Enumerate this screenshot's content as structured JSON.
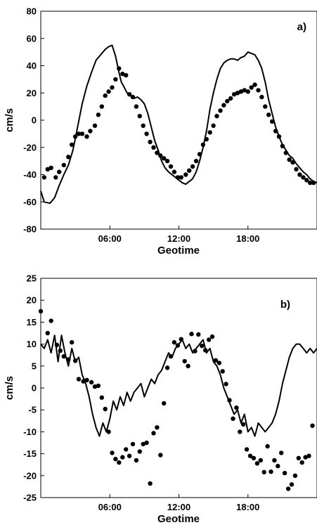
{
  "colors": {
    "line": "#000000",
    "points": "#000000",
    "background": "#ffffff"
  },
  "chart_data": [
    {
      "type": "line",
      "panel_label": "a)",
      "xlabel": "Geotime",
      "ylabel": "cm/s",
      "xlim": [
        0,
        24
      ],
      "ylim": [
        -80,
        80
      ],
      "xticks": [
        6,
        12,
        18
      ],
      "xtick_labels": [
        "06:00",
        "12:00",
        "18:00"
      ],
      "yticks": [
        -80,
        -60,
        -40,
        -20,
        0,
        20,
        40,
        60,
        80
      ],
      "ytick_labels": [
        "-80",
        "-60",
        "-40",
        "-20",
        "0",
        "20",
        "40",
        "60",
        "80"
      ],
      "grid": false,
      "series": [
        {
          "style": "line",
          "x": [
            0,
            0.3,
            0.8,
            1.2,
            1.6,
            2.0,
            2.4,
            2.8,
            3.2,
            3.6,
            4.0,
            4.4,
            4.8,
            5.2,
            5.6,
            5.9,
            6.2,
            6.5,
            6.8,
            7.0,
            7.2,
            7.5,
            7.8,
            8.1,
            8.4,
            8.7,
            9.0,
            9.3,
            9.6,
            9.9,
            10.2,
            10.5,
            10.8,
            11.1,
            11.4,
            11.7,
            12.0,
            12.3,
            12.6,
            12.9,
            13.2,
            13.5,
            13.8,
            14.1,
            14.4,
            14.7,
            15.0,
            15.3,
            15.6,
            15.9,
            16.2,
            16.5,
            16.8,
            17.1,
            17.4,
            17.7,
            18.0,
            18.3,
            18.6,
            18.9,
            19.2,
            19.5,
            19.8,
            20.1,
            20.4,
            20.7,
            21.0,
            21.3,
            21.6,
            21.9,
            22.2,
            22.5,
            22.8,
            23.1,
            23.4,
            23.7,
            24.0
          ],
          "y": [
            -52,
            -60,
            -61,
            -57,
            -48,
            -40,
            -33,
            -22,
            -5,
            12,
            25,
            35,
            44,
            48,
            52,
            54,
            55,
            47,
            35,
            28,
            25,
            20,
            18,
            16,
            17,
            15,
            12,
            5,
            -5,
            -15,
            -22,
            -30,
            -35,
            -38,
            -40,
            -42,
            -44,
            -46,
            -47,
            -45,
            -43,
            -38,
            -30,
            -20,
            -8,
            8,
            20,
            30,
            38,
            42,
            44,
            45,
            45,
            44,
            46,
            47,
            50,
            49,
            48,
            44,
            38,
            28,
            15,
            5,
            -5,
            -12,
            -18,
            -22,
            -26,
            -28,
            -32,
            -35,
            -38,
            -40,
            -43,
            -45,
            -46
          ]
        },
        {
          "style": "scatter",
          "x": [
            0.3,
            0.6,
            0.9,
            1.3,
            1.6,
            2.0,
            2.4,
            2.7,
            3.0,
            3.3,
            3.6,
            4.0,
            4.3,
            4.7,
            5.0,
            5.3,
            5.6,
            5.9,
            6.2,
            6.5,
            6.8,
            7.1,
            7.4,
            7.7,
            8.0,
            8.3,
            8.6,
            8.9,
            9.2,
            9.5,
            9.8,
            10.1,
            10.4,
            10.7,
            11.0,
            11.3,
            11.6,
            11.9,
            12.2,
            12.6,
            12.9,
            13.2,
            13.5,
            13.8,
            14.1,
            14.4,
            14.7,
            15.0,
            15.3,
            15.6,
            15.9,
            16.2,
            16.5,
            16.8,
            17.1,
            17.4,
            17.7,
            18.0,
            18.3,
            18.6,
            18.9,
            19.2,
            19.5,
            19.8,
            20.1,
            20.4,
            20.7,
            21.0,
            21.3,
            21.6,
            21.9,
            22.2,
            22.5,
            22.8,
            23.1,
            23.4,
            23.7
          ],
          "y": [
            -42,
            -36,
            -35,
            -42,
            -38,
            -33,
            -27,
            -18,
            -12,
            -10,
            -10,
            -12,
            -8,
            -4,
            4,
            10,
            18,
            21,
            24,
            30,
            38,
            34,
            33,
            19,
            17,
            10,
            3,
            -4,
            -10,
            -16,
            -20,
            -24,
            -26,
            -28,
            -30,
            -34,
            -38,
            -42,
            -42,
            -40,
            -37,
            -34,
            -30,
            -25,
            -18,
            -14,
            -9,
            -4,
            3,
            7,
            11,
            14,
            16,
            19,
            20,
            21,
            22,
            21,
            24,
            26,
            22,
            17,
            10,
            4,
            -1,
            -8,
            -12,
            -19,
            -24,
            -29,
            -31,
            -36,
            -40,
            -42,
            -44,
            -46,
            -46
          ]
        }
      ]
    },
    {
      "type": "line",
      "panel_label": "b)",
      "xlabel": "Geotime",
      "ylabel": "cm/s",
      "xlim": [
        0,
        24
      ],
      "ylim": [
        -25,
        25
      ],
      "xticks": [
        6,
        12,
        18
      ],
      "xtick_labels": [
        "06:00",
        "12:00",
        "18:00"
      ],
      "yticks": [
        -25,
        -20,
        -15,
        -10,
        -5,
        0,
        5,
        10,
        15,
        20,
        25
      ],
      "ytick_labels": [
        "-25",
        "-20",
        "-15",
        "-10",
        "-5",
        "0",
        "5",
        "10",
        "15",
        "20",
        "25"
      ],
      "grid": false,
      "series": [
        {
          "style": "line",
          "x": [
            0,
            0.3,
            0.6,
            0.9,
            1.2,
            1.5,
            1.8,
            2.1,
            2.4,
            2.7,
            3.0,
            3.3,
            3.6,
            3.9,
            4.2,
            4.5,
            4.8,
            5.1,
            5.4,
            5.7,
            6.0,
            6.3,
            6.6,
            6.9,
            7.2,
            7.5,
            7.8,
            8.1,
            8.4,
            8.7,
            9.0,
            9.3,
            9.6,
            9.9,
            10.2,
            10.5,
            10.8,
            11.1,
            11.4,
            11.7,
            12.0,
            12.3,
            12.6,
            12.9,
            13.2,
            13.5,
            13.8,
            14.1,
            14.4,
            14.7,
            15.0,
            15.3,
            15.6,
            15.9,
            16.2,
            16.5,
            16.8,
            17.1,
            17.4,
            17.7,
            18.0,
            18.3,
            18.6,
            18.9,
            19.2,
            19.5,
            19.8,
            20.1,
            20.4,
            20.7,
            21.0,
            21.3,
            21.6,
            21.9,
            22.2,
            22.5,
            22.8,
            23.1,
            23.4,
            23.7,
            24.0
          ],
          "y": [
            10,
            9,
            11,
            8,
            12,
            6,
            12,
            8,
            5,
            9,
            6,
            7,
            3,
            1,
            -2,
            -6,
            -9,
            -11,
            -8,
            -10,
            -7,
            -3,
            -5,
            -2,
            -4,
            -1,
            -3,
            -1,
            0,
            1,
            -2,
            0,
            2,
            1,
            3,
            4,
            6,
            8,
            7,
            9,
            10,
            11,
            9,
            10,
            8,
            9,
            10,
            11,
            8,
            9,
            6,
            5,
            3,
            0,
            -2,
            -4,
            -6,
            -5,
            -8,
            -6,
            -10,
            -9,
            -11,
            -8,
            -9,
            -10,
            -9,
            -8,
            -6,
            -3,
            1,
            4,
            7,
            9,
            10,
            10,
            9,
            8,
            9,
            8,
            9
          ]
        },
        {
          "style": "scatter",
          "x": [
            0,
            0.6,
            0.9,
            1.4,
            1.7,
            2.0,
            2.4,
            2.7,
            3.0,
            3.3,
            3.7,
            4.0,
            4.4,
            4.7,
            5.0,
            5.3,
            5.6,
            5.9,
            6.2,
            6.5,
            6.8,
            7.1,
            7.4,
            7.7,
            8.0,
            8.3,
            8.6,
            8.9,
            9.2,
            9.5,
            9.8,
            10.1,
            10.4,
            10.7,
            11.0,
            11.3,
            11.6,
            11.9,
            12.2,
            12.5,
            12.8,
            13.1,
            13.4,
            13.7,
            14.0,
            14.3,
            14.6,
            14.9,
            15.2,
            15.5,
            15.8,
            16.1,
            16.4,
            16.7,
            17.0,
            17.3,
            17.6,
            17.9,
            18.2,
            18.5,
            18.8,
            19.1,
            19.4,
            19.7,
            20.0,
            20.3,
            20.6,
            20.9,
            21.2,
            21.5,
            21.8,
            22.1,
            22.4,
            22.7,
            23.0,
            23.3,
            23.6
          ],
          "y": [
            17.5,
            12.5,
            15.3,
            9.8,
            8.5,
            7.2,
            6.5,
            10.4,
            6.2,
            2.0,
            1.5,
            1.8,
            1.3,
            0.3,
            0.5,
            -2.2,
            -4.8,
            -10.0,
            -14.8,
            -16.2,
            -17.0,
            -15.8,
            -14.0,
            -15.5,
            -12.8,
            -16.5,
            -14.5,
            -12.8,
            -12.5,
            -21.8,
            -10.3,
            -9.0,
            -15.3,
            -3.5,
            4.6,
            7.2,
            10.4,
            9.7,
            11.1,
            6.1,
            5.0,
            12.3,
            8.4,
            12.2,
            9.6,
            8.6,
            11.0,
            11.7,
            6.3,
            5.7,
            3.8,
            0.9,
            -2.8,
            -7.0,
            -4.5,
            -10.0,
            -8.3,
            -14.0,
            -15.5,
            -16.0,
            -17.2,
            -16.5,
            -19.2,
            -13.3,
            -19.1,
            -16.5,
            -17.8,
            -14.8,
            -19.4,
            -23.0,
            -22.0,
            -20.0,
            -16.0,
            -17.0,
            -15.8,
            -15.5,
            -8.6
          ]
        }
      ]
    }
  ]
}
